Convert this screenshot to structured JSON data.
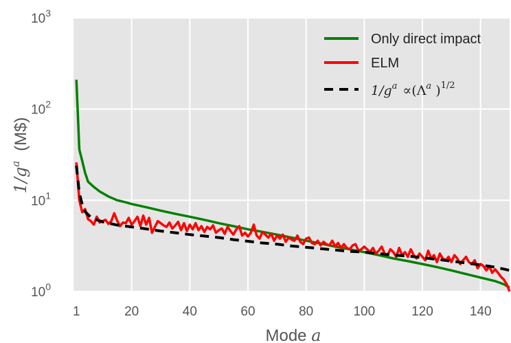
{
  "chart_data": {
    "type": "line",
    "title": "",
    "xlabel": {
      "text": "Mode",
      "math": "a"
    },
    "ylabel": {
      "math_prefix": "1/g",
      "math_sup": "a",
      "unit": "(M$)"
    },
    "xscale": "linear",
    "yscale": "log",
    "xlim": [
      0,
      150
    ],
    "ylim": [
      1,
      1000
    ],
    "x_ticks": [
      {
        "value": 1,
        "label": "1"
      },
      {
        "value": 20,
        "label": "20"
      },
      {
        "value": 40,
        "label": "40"
      },
      {
        "value": 60,
        "label": "60"
      },
      {
        "value": 80,
        "label": "80"
      },
      {
        "value": 100,
        "label": "100"
      },
      {
        "value": 120,
        "label": "120"
      },
      {
        "value": 140,
        "label": "140"
      }
    ],
    "y_ticks": [
      {
        "value": 1,
        "base": "10",
        "exp": "0"
      },
      {
        "value": 10,
        "base": "10",
        "exp": "1"
      },
      {
        "value": 100,
        "base": "10",
        "exp": "2"
      },
      {
        "value": 1000,
        "base": "10",
        "exp": "3"
      }
    ],
    "grid": true,
    "background": "#e5e5e5",
    "legend_position": "top-right",
    "series": [
      {
        "name": "Only direct impact",
        "color": "#008000",
        "style": "solid",
        "points": [
          [
            1,
            210
          ],
          [
            2,
            36
          ],
          [
            3,
            27
          ],
          [
            4,
            20
          ],
          [
            5,
            16
          ],
          [
            7,
            14
          ],
          [
            9,
            12.5
          ],
          [
            12,
            11
          ],
          [
            15,
            10
          ],
          [
            18,
            9.5
          ],
          [
            20,
            9.1
          ],
          [
            25,
            8.4
          ],
          [
            30,
            7.7
          ],
          [
            35,
            7.1
          ],
          [
            40,
            6.6
          ],
          [
            45,
            6.1
          ],
          [
            50,
            5.6
          ],
          [
            55,
            5.2
          ],
          [
            60,
            4.8
          ],
          [
            65,
            4.5
          ],
          [
            70,
            4.2
          ],
          [
            75,
            3.9
          ],
          [
            80,
            3.6
          ],
          [
            85,
            3.35
          ],
          [
            90,
            3.1
          ],
          [
            95,
            2.9
          ],
          [
            100,
            2.7
          ],
          [
            105,
            2.5
          ],
          [
            110,
            2.3
          ],
          [
            115,
            2.15
          ],
          [
            120,
            2.0
          ],
          [
            125,
            1.85
          ],
          [
            130,
            1.7
          ],
          [
            135,
            1.55
          ],
          [
            140,
            1.42
          ],
          [
            145,
            1.3
          ],
          [
            148,
            1.2
          ],
          [
            150,
            1.1
          ]
        ]
      },
      {
        "name": "ELM",
        "color": "#ff0000",
        "style": "solid",
        "points": [
          [
            1,
            26
          ],
          [
            2,
            10
          ],
          [
            3,
            7.4
          ],
          [
            4,
            8
          ],
          [
            5,
            6.2
          ],
          [
            6,
            5.9
          ],
          [
            7,
            5.4
          ],
          [
            8,
            6.6
          ],
          [
            9,
            5.7
          ],
          [
            10,
            5.9
          ],
          [
            11,
            6.1
          ],
          [
            12,
            5.5
          ],
          [
            13,
            5.9
          ],
          [
            14,
            7.2
          ],
          [
            15,
            6
          ],
          [
            16,
            5.2
          ],
          [
            17,
            5.7
          ],
          [
            18,
            5.6
          ],
          [
            19,
            6.4
          ],
          [
            20,
            5.4
          ],
          [
            21,
            5.9
          ],
          [
            22,
            6.6
          ],
          [
            23,
            5.2
          ],
          [
            24,
            6.8
          ],
          [
            25,
            5.4
          ],
          [
            26,
            6.4
          ],
          [
            27,
            4.4
          ],
          [
            28,
            5.1
          ],
          [
            29,
            5.9
          ],
          [
            30,
            5.6
          ],
          [
            31,
            5.3
          ],
          [
            32,
            5.1
          ],
          [
            33,
            5.7
          ],
          [
            34,
            4.9
          ],
          [
            35,
            5.3
          ],
          [
            36,
            5.8
          ],
          [
            37,
            4.7
          ],
          [
            38,
            5.6
          ],
          [
            39,
            4.6
          ],
          [
            40,
            5.4
          ],
          [
            41,
            4.8
          ],
          [
            42,
            5.6
          ],
          [
            43,
            4.7
          ],
          [
            44,
            5.2
          ],
          [
            45,
            4.5
          ],
          [
            46,
            5.1
          ],
          [
            47,
            4.8
          ],
          [
            48,
            5.3
          ],
          [
            49,
            4.4
          ],
          [
            50,
            4.7
          ],
          [
            51,
            4.9
          ],
          [
            52,
            4.3
          ],
          [
            53,
            5.1
          ],
          [
            54,
            4.6
          ],
          [
            55,
            4.2
          ],
          [
            56,
            4.8
          ],
          [
            57,
            5.2
          ],
          [
            58,
            4.1
          ],
          [
            59,
            4.4
          ],
          [
            60,
            4
          ],
          [
            61,
            4.4
          ],
          [
            62,
            5.4
          ],
          [
            63,
            4.1
          ],
          [
            64,
            3.8
          ],
          [
            65,
            4.5
          ],
          [
            66,
            4.2
          ],
          [
            67,
            3.9
          ],
          [
            68,
            4.3
          ],
          [
            69,
            3.6
          ],
          [
            70,
            4.1
          ],
          [
            71,
            3.8
          ],
          [
            72,
            4.2
          ],
          [
            73,
            3.5
          ],
          [
            74,
            3.9
          ],
          [
            75,
            3.7
          ],
          [
            76,
            3.6
          ],
          [
            77,
            4.1
          ],
          [
            78,
            3.5
          ],
          [
            79,
            3.3
          ],
          [
            80,
            3.8
          ],
          [
            81,
            3.9
          ],
          [
            82,
            3.4
          ],
          [
            83,
            3.3
          ],
          [
            84,
            3.6
          ],
          [
            85,
            3.2
          ],
          [
            86,
            3.5
          ],
          [
            87,
            3.3
          ],
          [
            88,
            3.2
          ],
          [
            89,
            3.6
          ],
          [
            90,
            3.1
          ],
          [
            91,
            3.4
          ],
          [
            92,
            3
          ],
          [
            93,
            3.3
          ],
          [
            94,
            3
          ],
          [
            95,
            2.9
          ],
          [
            96,
            3.2
          ],
          [
            97,
            3.3
          ],
          [
            98,
            2.8
          ],
          [
            99,
            2.9
          ],
          [
            100,
            3.1
          ],
          [
            101,
            2.9
          ],
          [
            102,
            2.7
          ],
          [
            103,
            3
          ],
          [
            104,
            2.6
          ],
          [
            105,
            2.8
          ],
          [
            106,
            3.1
          ],
          [
            107,
            2.6
          ],
          [
            108,
            2.5
          ],
          [
            109,
            2.9
          ],
          [
            110,
            2.7
          ],
          [
            111,
            2.4
          ],
          [
            112,
            3
          ],
          [
            113,
            2.5
          ],
          [
            114,
            2.7
          ],
          [
            115,
            2.4
          ],
          [
            116,
            2.9
          ],
          [
            117,
            2.5
          ],
          [
            118,
            2.3
          ],
          [
            119,
            2.6
          ],
          [
            120,
            2.4
          ],
          [
            121,
            2.2
          ],
          [
            122,
            2.8
          ],
          [
            123,
            2.3
          ],
          [
            124,
            2.5
          ],
          [
            125,
            2.1
          ],
          [
            126,
            2.6
          ],
          [
            127,
            2.3
          ],
          [
            128,
            2.2
          ],
          [
            129,
            2.4
          ],
          [
            130,
            2.1
          ],
          [
            131,
            2.5
          ],
          [
            132,
            2.3
          ],
          [
            133,
            2
          ],
          [
            134,
            2.2
          ],
          [
            135,
            2.4
          ],
          [
            136,
            2.1
          ],
          [
            137,
            2
          ],
          [
            138,
            2.2
          ],
          [
            139,
            1.8
          ],
          [
            140,
            2
          ],
          [
            141,
            1.9
          ],
          [
            142,
            1.7
          ],
          [
            143,
            1.9
          ],
          [
            144,
            1.6
          ],
          [
            145,
            1.75
          ],
          [
            146,
            1.6
          ],
          [
            147,
            1.45
          ],
          [
            148,
            1.35
          ],
          [
            149,
            1.2
          ],
          [
            150,
            1.0
          ]
        ]
      },
      {
        "name_math": "1/g^a ∝(Λ^a )^{1/2}",
        "color": "#000000",
        "style": "dashed",
        "points": [
          [
            1,
            24
          ],
          [
            2,
            12
          ],
          [
            3,
            9
          ],
          [
            4,
            7.5
          ],
          [
            6,
            6.5
          ],
          [
            8,
            6.1
          ],
          [
            10,
            5.8
          ],
          [
            15,
            5.35
          ],
          [
            20,
            5.1
          ],
          [
            25,
            4.85
          ],
          [
            30,
            4.6
          ],
          [
            35,
            4.4
          ],
          [
            40,
            4.2
          ],
          [
            45,
            4.05
          ],
          [
            50,
            3.9
          ],
          [
            55,
            3.7
          ],
          [
            60,
            3.55
          ],
          [
            65,
            3.4
          ],
          [
            70,
            3.3
          ],
          [
            75,
            3.15
          ],
          [
            80,
            3.05
          ],
          [
            85,
            2.95
          ],
          [
            90,
            2.85
          ],
          [
            95,
            2.75
          ],
          [
            100,
            2.7
          ],
          [
            105,
            2.6
          ],
          [
            110,
            2.5
          ],
          [
            115,
            2.45
          ],
          [
            120,
            2.35
          ],
          [
            125,
            2.25
          ],
          [
            130,
            2.15
          ],
          [
            135,
            2.05
          ],
          [
            140,
            1.95
          ],
          [
            145,
            1.85
          ],
          [
            150,
            1.7
          ]
        ]
      }
    ]
  }
}
